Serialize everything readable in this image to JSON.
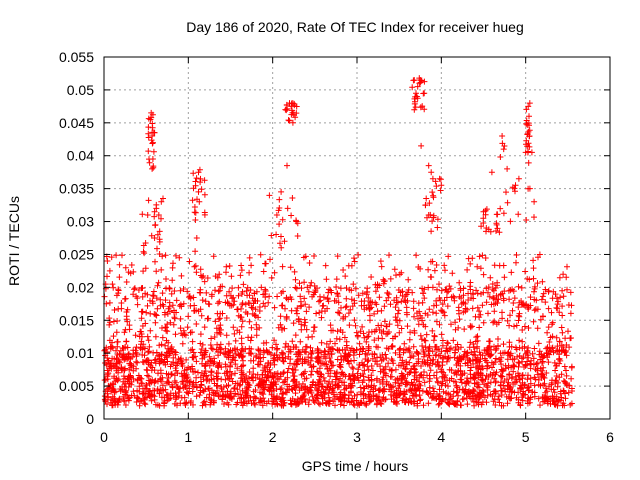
{
  "chart_data": {
    "type": "scatter",
    "title": "Day 186 of 2020, Rate Of TEC Index for receiver hueg",
    "xlabel": "GPS time / hours",
    "ylabel": "ROTI / TECUs",
    "xlim": [
      0,
      6
    ],
    "ylim": [
      0,
      0.055
    ],
    "xticks": [
      "0",
      "1",
      "2",
      "3",
      "4",
      "5",
      "6"
    ],
    "yticks": [
      "0",
      "0.005",
      "0.01",
      "0.015",
      "0.02",
      "0.025",
      "0.03",
      "0.035",
      "0.04",
      "0.045",
      "0.05",
      "0.055"
    ],
    "grid": true,
    "marker": "+",
    "color": "#ff0000",
    "data_range_x": [
      0,
      5.55
    ],
    "clusters": [
      {
        "x": [
          0.45,
          0.7
        ],
        "y": [
          0.025,
          0.034
        ]
      },
      {
        "x": [
          0.5,
          0.6
        ],
        "y": [
          0.038,
          0.047
        ]
      },
      {
        "x": [
          1.05,
          1.2
        ],
        "y": [
          0.03,
          0.038
        ]
      },
      {
        "x": [
          1.9,
          2.3
        ],
        "y": [
          0.026,
          0.034
        ]
      },
      {
        "x": [
          2.15,
          2.3
        ],
        "y": [
          0.045,
          0.048
        ]
      },
      {
        "x": [
          3.65,
          3.8
        ],
        "y": [
          0.047,
          0.052
        ]
      },
      {
        "x": [
          3.8,
          4.0
        ],
        "y": [
          0.028,
          0.038
        ]
      },
      {
        "x": [
          4.4,
          4.7
        ],
        "y": [
          0.028,
          0.032
        ]
      },
      {
        "x": [
          4.7,
          5.1
        ],
        "y": [
          0.03,
          0.043
        ]
      },
      {
        "x": [
          5.0,
          5.05
        ],
        "y": [
          0.04,
          0.048
        ]
      }
    ],
    "points": [
      [
        0.02,
        0.0205
      ],
      [
        0.04,
        0.024
      ],
      [
        0.07,
        0.0225
      ],
      [
        0.1,
        0.0205
      ],
      [
        0.55,
        0.0455
      ],
      [
        0.56,
        0.0465
      ],
      [
        0.57,
        0.043
      ],
      [
        0.58,
        0.042
      ],
      [
        0.6,
        0.0435
      ],
      [
        0.58,
        0.0395
      ],
      [
        0.57,
        0.038
      ],
      [
        0.62,
        0.032
      ],
      [
        0.6,
        0.0315
      ],
      [
        0.65,
        0.031
      ],
      [
        0.68,
        0.033
      ],
      [
        0.7,
        0.0335
      ],
      [
        0.66,
        0.0285
      ],
      [
        0.6,
        0.0275
      ],
      [
        1.12,
        0.0375
      ],
      [
        1.14,
        0.036
      ],
      [
        1.12,
        0.0345
      ],
      [
        1.13,
        0.033
      ],
      [
        1.1,
        0.0275
      ],
      [
        1.08,
        0.0255
      ],
      [
        2.17,
        0.0385
      ],
      [
        2.2,
        0.048
      ],
      [
        2.22,
        0.0475
      ],
      [
        2.25,
        0.0465
      ],
      [
        2.24,
        0.045
      ],
      [
        2.1,
        0.0345
      ],
      [
        2.05,
        0.031
      ],
      [
        2.28,
        0.03
      ],
      [
        3.68,
        0.047
      ],
      [
        3.7,
        0.0495
      ],
      [
        3.72,
        0.0505
      ],
      [
        3.74,
        0.051
      ],
      [
        3.75,
        0.0515
      ],
      [
        3.71,
        0.049
      ],
      [
        3.76,
        0.0415
      ],
      [
        3.85,
        0.0385
      ],
      [
        3.88,
        0.0375
      ],
      [
        3.9,
        0.0365
      ],
      [
        3.98,
        0.0365
      ],
      [
        4.0,
        0.0355
      ],
      [
        3.82,
        0.0335
      ],
      [
        3.85,
        0.031
      ],
      [
        4.72,
        0.043
      ],
      [
        4.74,
        0.041
      ],
      [
        4.78,
        0.038
      ],
      [
        4.88,
        0.0355
      ],
      [
        4.92,
        0.0365
      ],
      [
        5.0,
        0.0405
      ],
      [
        5.03,
        0.0475
      ],
      [
        5.04,
        0.046
      ],
      [
        5.05,
        0.035
      ],
      [
        5.1,
        0.033
      ],
      [
        4.6,
        0.0375
      ],
      [
        4.5,
        0.0315
      ]
    ]
  }
}
